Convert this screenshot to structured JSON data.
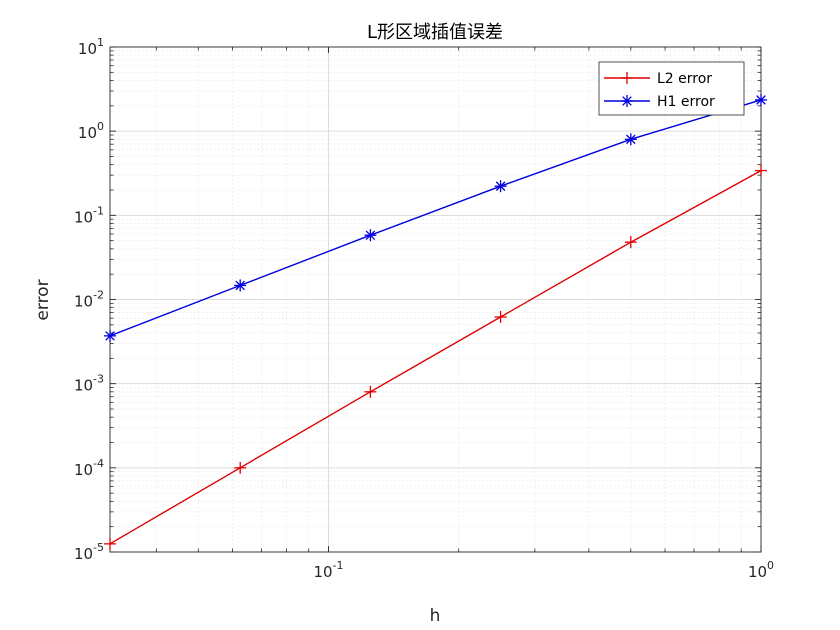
{
  "chart_data": {
    "type": "line",
    "title": "L形区域插值误差",
    "xlabel": "h",
    "ylabel": "error",
    "xscale": "log",
    "yscale": "log",
    "xlim": [
      0.03125,
      1
    ],
    "ylim": [
      1e-05,
      10
    ],
    "grid": true,
    "legend_position": "top-right",
    "x": [
      0.03125,
      0.0625,
      0.125,
      0.25,
      0.5,
      1
    ],
    "x_ticks": [
      {
        "value": 0.1,
        "base": "10",
        "exp": "-1"
      },
      {
        "value": 1,
        "base": "10",
        "exp": "0"
      }
    ],
    "y_ticks": [
      {
        "value": 1e-05,
        "base": "10",
        "exp": "-5"
      },
      {
        "value": 0.0001,
        "base": "10",
        "exp": "-4"
      },
      {
        "value": 0.001,
        "base": "10",
        "exp": "-3"
      },
      {
        "value": 0.01,
        "base": "10",
        "exp": "-2"
      },
      {
        "value": 0.1,
        "base": "10",
        "exp": "-1"
      },
      {
        "value": 1,
        "base": "10",
        "exp": "0"
      },
      {
        "value": 10,
        "base": "10",
        "exp": "1"
      }
    ],
    "series": [
      {
        "name": "L2 error",
        "color": "#e00000",
        "marker": "plus",
        "values": [
          1.25e-05,
          0.0001,
          0.0008,
          0.0062,
          0.048,
          0.34
        ]
      },
      {
        "name": "H1 error",
        "color": "#0000e0",
        "marker": "asterisk",
        "values": [
          0.0037,
          0.0147,
          0.058,
          0.222,
          0.8,
          2.35
        ]
      }
    ]
  }
}
